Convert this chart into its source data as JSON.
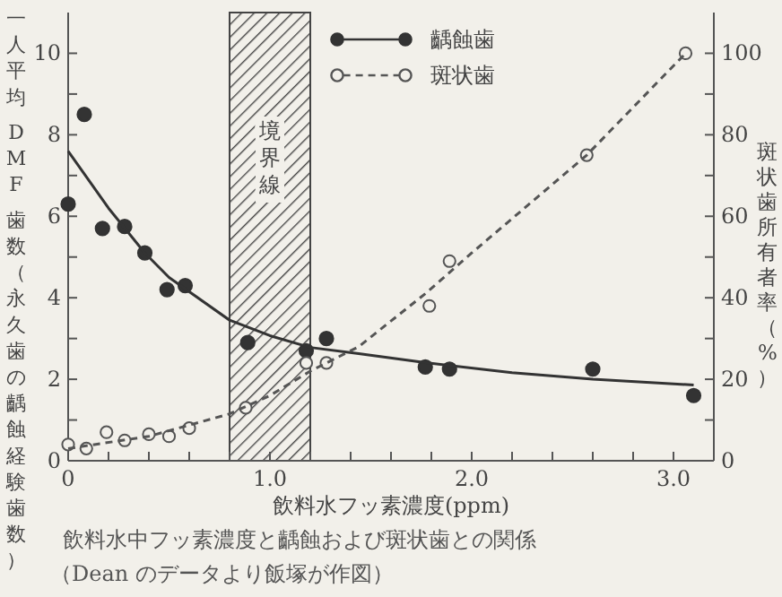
{
  "chart_data": {
    "type": "scatter",
    "xlabel": "飲料水フッ素濃度(ppm)",
    "ylabel": "一人平均 DMF 歯数（永久歯の齲蝕経験歯数）",
    "y2label": "斑状歯所有者率（%）",
    "annotations": [
      "飲料水中フッ素濃度と齲蝕および斑状歯との関係",
      "（Dean のデータより飯塚が作図）"
    ],
    "xlim": [
      0,
      3.2
    ],
    "ylim": [
      0,
      11
    ],
    "y2lim": [
      0,
      110
    ],
    "xticks": [
      0,
      {
        "value": 0.2,
        "label": null
      },
      {
        "value": 0.4,
        "label": null
      },
      {
        "value": 0.6,
        "label": null
      },
      {
        "value": 0.8,
        "label": null
      },
      {
        "value": 1,
        "label": "1.0"
      },
      {
        "value": 1.2,
        "label": null
      },
      {
        "value": 1.4,
        "label": null
      },
      {
        "value": 1.6,
        "label": null
      },
      {
        "value": 1.8,
        "label": null
      },
      {
        "value": 2,
        "label": "2.0"
      },
      {
        "value": 2.2,
        "label": null
      },
      {
        "value": 2.4,
        "label": null
      },
      {
        "value": 2.6,
        "label": null
      },
      {
        "value": 2.8,
        "label": null
      },
      {
        "value": 3,
        "label": "3.0"
      }
    ],
    "yticks": [
      0,
      {
        "value": 1,
        "label": null
      },
      2,
      {
        "value": 3,
        "label": null
      },
      4,
      {
        "value": 5,
        "label": null
      },
      6,
      {
        "value": 7,
        "label": null
      },
      8,
      {
        "value": 9,
        "label": null
      },
      10
    ],
    "y2ticks": [
      0,
      {
        "value": 10,
        "label": null
      },
      20,
      {
        "value": 30,
        "label": null
      },
      40,
      {
        "value": 50,
        "label": null
      },
      60,
      {
        "value": 70,
        "label": null
      },
      80,
      {
        "value": 90,
        "label": null
      },
      100
    ],
    "bands": [
      {
        "axis": "x",
        "from": 0.8,
        "to": 1.2,
        "label": "境界線",
        "color": "#444444"
      }
    ],
    "legend": "top right",
    "grid": false,
    "series": [
      {
        "name": "齲蝕歯",
        "type": "scatter",
        "marker": "circle",
        "color": "#333333",
        "x": [
          0,
          0.08,
          0.17,
          0.28,
          0.38,
          0.49,
          0.58,
          0.89,
          1.18,
          1.28,
          1.77,
          1.89,
          2.6,
          3.1
        ],
        "values": [
          6.3,
          8.5,
          5.7,
          5.75,
          5.1,
          4.2,
          4.3,
          2.9,
          2.7,
          3.0,
          2.3,
          2.25,
          2.25,
          1.6
        ]
      },
      {
        "name": "斑状歯",
        "type": "scatter",
        "marker": "circle",
        "color": "#555555",
        "axis": "y2",
        "x": [
          0,
          0.09,
          0.19,
          0.28,
          0.4,
          0.5,
          0.6,
          0.88,
          1.18,
          1.28,
          1.79,
          1.89,
          2.57,
          3.06
        ],
        "values": [
          4,
          3,
          7,
          5,
          6.5,
          6,
          8,
          13,
          24,
          24,
          38,
          49,
          75,
          100
        ]
      },
      {
        "type": "line",
        "color": "#333333",
        "line_style": "solid",
        "x": [
          0,
          0.1,
          0.2,
          0.38,
          0.5,
          0.8,
          1.0,
          1.2,
          1.44,
          1.77,
          2.2,
          2.6,
          3.1
        ],
        "values": [
          7.6,
          6.9,
          6.2,
          5.1,
          4.5,
          3.45,
          3.07,
          2.78,
          2.63,
          2.41,
          2.16,
          2.0,
          1.86
        ]
      },
      {
        "type": "line",
        "color": "#555555",
        "line_style": "dashed",
        "axis": "y2",
        "x": [
          0,
          0.4,
          0.8,
          1.0,
          1.2,
          1.44,
          1.77,
          2.0,
          2.57,
          3.06
        ],
        "values": [
          3,
          6,
          11.5,
          16,
          22,
          28,
          41,
          51,
          75,
          100
        ]
      }
    ]
  }
}
